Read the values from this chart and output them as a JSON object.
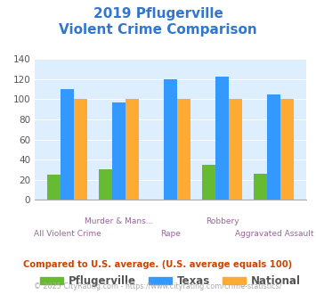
{
  "title_line1": "2019 Pflugerville",
  "title_line2": "Violent Crime Comparison",
  "title_color": "#3377cc",
  "categories": [
    "All Violent Crime",
    "Murder & Mans...",
    "Rape",
    "Robbery",
    "Aggravated Assault"
  ],
  "label_top": [
    "",
    "Murder & Mans...",
    "",
    "Robbery",
    ""
  ],
  "label_bot": [
    "All Violent Crime",
    "",
    "Rape",
    "",
    "Aggravated Assault"
  ],
  "pflugerville": [
    25,
    30,
    0,
    35,
    26
  ],
  "texas": [
    110,
    97,
    120,
    122,
    105
  ],
  "national": [
    100,
    100,
    100,
    100,
    100
  ],
  "pflugerville_color": "#66bb33",
  "texas_color": "#3399ff",
  "national_color": "#ffaa33",
  "bg_color": "#ddeeff",
  "ylim": [
    0,
    140
  ],
  "yticks": [
    0,
    20,
    40,
    60,
    80,
    100,
    120,
    140
  ],
  "legend_labels": [
    "Pflugerville",
    "Texas",
    "National"
  ],
  "footnote1": "Compared to U.S. average. (U.S. average equals 100)",
  "footnote2": "© 2025 CityRating.com - https://www.cityrating.com/crime-statistics/",
  "footnote1_color": "#cc4400",
  "footnote2_color": "#aaaaaa",
  "label_color": "#996699"
}
